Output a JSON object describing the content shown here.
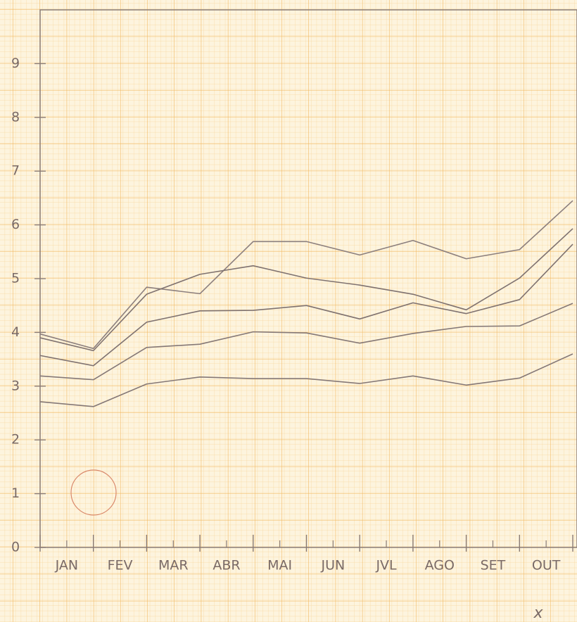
{
  "chart_data": {
    "type": "line",
    "x_label": "x",
    "categories": [
      "JAN",
      "FEV",
      "MAR",
      "ABR",
      "MAI",
      "JUN",
      "JVL",
      "AGO",
      "SET",
      "OUT",
      null
    ],
    "series": [
      {
        "color": "#8c7f7d",
        "values": [
          3.97,
          3.7,
          4.84,
          4.72,
          5.69,
          5.69,
          5.44,
          5.71,
          5.37,
          5.54,
          6.45
        ]
      },
      {
        "color": "#7f7270",
        "values": [
          3.9,
          3.66,
          4.71,
          5.08,
          5.24,
          5.01,
          4.88,
          4.71,
          4.42,
          5.01,
          5.93
        ]
      },
      {
        "color": "#7f7270",
        "values": [
          3.57,
          3.38,
          4.19,
          4.4,
          4.41,
          4.5,
          4.25,
          4.55,
          4.35,
          4.61,
          5.64
        ]
      },
      {
        "color": "#857876",
        "values": [
          3.19,
          3.12,
          3.72,
          3.78,
          4.01,
          3.99,
          3.8,
          3.98,
          4.11,
          4.12,
          4.54
        ]
      },
      {
        "color": "#857876",
        "values": [
          2.71,
          2.62,
          3.04,
          3.17,
          3.14,
          3.14,
          3.05,
          3.19,
          3.02,
          3.15,
          3.6
        ]
      }
    ],
    "ylim": [
      0,
      10
    ],
    "yticks": [
      0,
      1,
      2,
      3,
      4,
      5,
      6,
      7,
      8,
      9
    ]
  }
}
